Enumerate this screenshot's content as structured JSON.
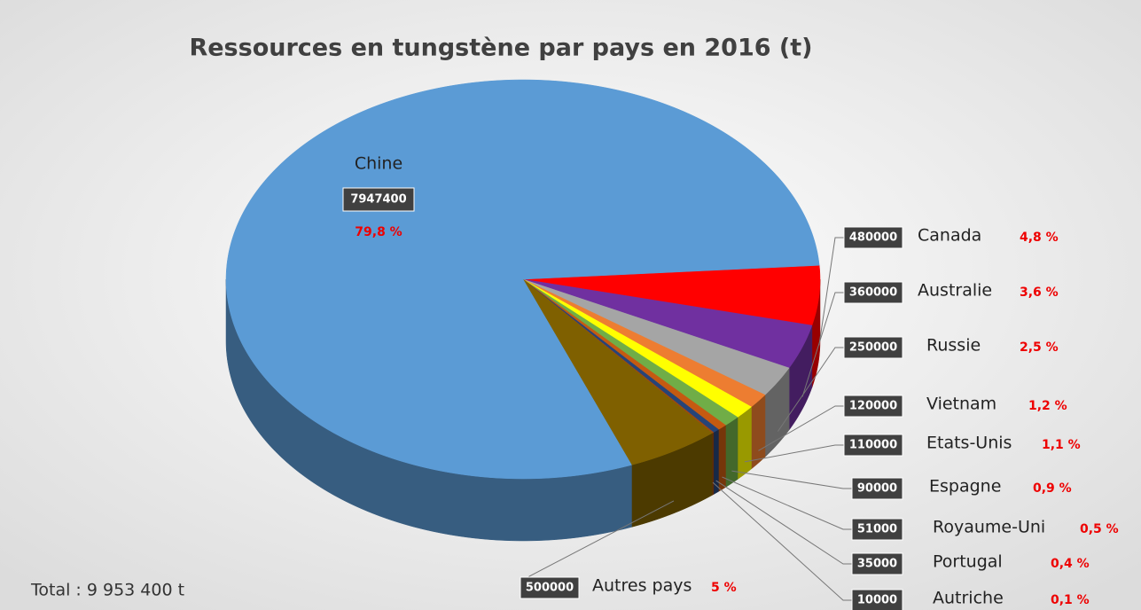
{
  "chart_data": {
    "type": "pie",
    "title": "Ressources en tungstène par pays en 2016 (t)",
    "annotation": "Total : 9 953 400 t",
    "categories": [
      "Canada",
      "Australie",
      "Russie",
      "Vietnam",
      "Etats-Unis",
      "Espagne",
      "Royaume-Uni",
      "Portugal",
      "Autriche",
      "Autres pays",
      "Chine"
    ],
    "values": [
      480000,
      360000,
      250000,
      120000,
      110000,
      90000,
      51000,
      35000,
      10000,
      500000,
      7947400
    ],
    "percent_labels": [
      "4,8 %",
      "3,6 %",
      "2,5 %",
      "1,2 %",
      "1,1 %",
      "0,9 %",
      "0,5 %",
      "0,4 %",
      "0,1 %",
      "5 %",
      "79,8 %"
    ],
    "colors": [
      "#ff0000",
      "#7030a0",
      "#a5a5a5",
      "#ed7d31",
      "#ffff00",
      "#70ad47",
      "#c55a11",
      "#264478",
      "#9e480e",
      "#7f6000",
      "#5b9bd5"
    ]
  }
}
